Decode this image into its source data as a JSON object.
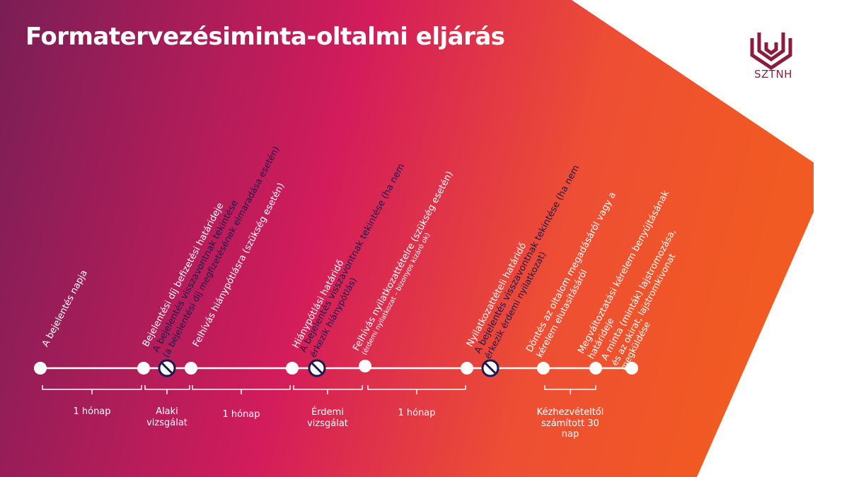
{
  "title": "Formatervezésiminta-oltalmi eljárás",
  "logo": {
    "text": "SZTNH",
    "color": "#8a1c3f"
  },
  "colors": {
    "gradient_start": "#7a1e56",
    "gradient_mid": "#d31c5b",
    "gradient_end": "#f15a22",
    "timeline": "#ffffff",
    "dark_marker": "#1b1a4f"
  },
  "labels": {
    "l0": {
      "line1": "A bejelentés napja"
    },
    "l1": {
      "line1": "Bejelentési díj befizetési határideje"
    },
    "l2": {
      "line1": "A bejelentés visszavontnak tekintése",
      "line2": "(a bejelentési díj megfizetésének elmaradása esetén)"
    },
    "l3": {
      "line1": "Felhívás hiánypótlásra (szükség esetén)"
    },
    "l4": {
      "line1": "Hiánypótlási határidő"
    },
    "l5": {
      "line1": "A bejelentés visszavontnak tekintése (ha nem",
      "line2": "érkezik hiánypótlás)"
    },
    "l6": {
      "line1": "Felhívás nyilatkozattételre (szükség esetén)",
      "line2": "(érdemi nyilatkozat – bizonyos kizáró ok)"
    },
    "l7": {
      "line1": "Nyilatkozattételi határidő"
    },
    "l8": {
      "line1": "A bejelentés visszavontnak tekintése (ha nem",
      "line2": "érkezik érdemi nyilatkozat)"
    },
    "l9": {
      "line1": "Döntés az oltalom megadásáról vagy a",
      "line2": "kérelem elutasításáról"
    },
    "l10": {
      "line1": "Megváltoztatási kérelem benyújtásának",
      "line2": "határideje"
    },
    "l11": {
      "line1": "A minta (minták) lajstromozása,",
      "line2": "és az okirat, lajstromkivonat",
      "line3": "megküldése"
    }
  },
  "segments": {
    "s1": {
      "line1": "1 hónap"
    },
    "s2": {
      "line1": "Alaki",
      "line2": "vizsgálat"
    },
    "s3": {
      "line1": "1 hónap"
    },
    "s4": {
      "line1": "Érdemi",
      "line2": "vizsgálat"
    },
    "s5": {
      "line1": "1 hónap"
    },
    "s6": {
      "line1": "Kézhezvételtől",
      "line2": "számított 30",
      "line3": "nap"
    }
  }
}
